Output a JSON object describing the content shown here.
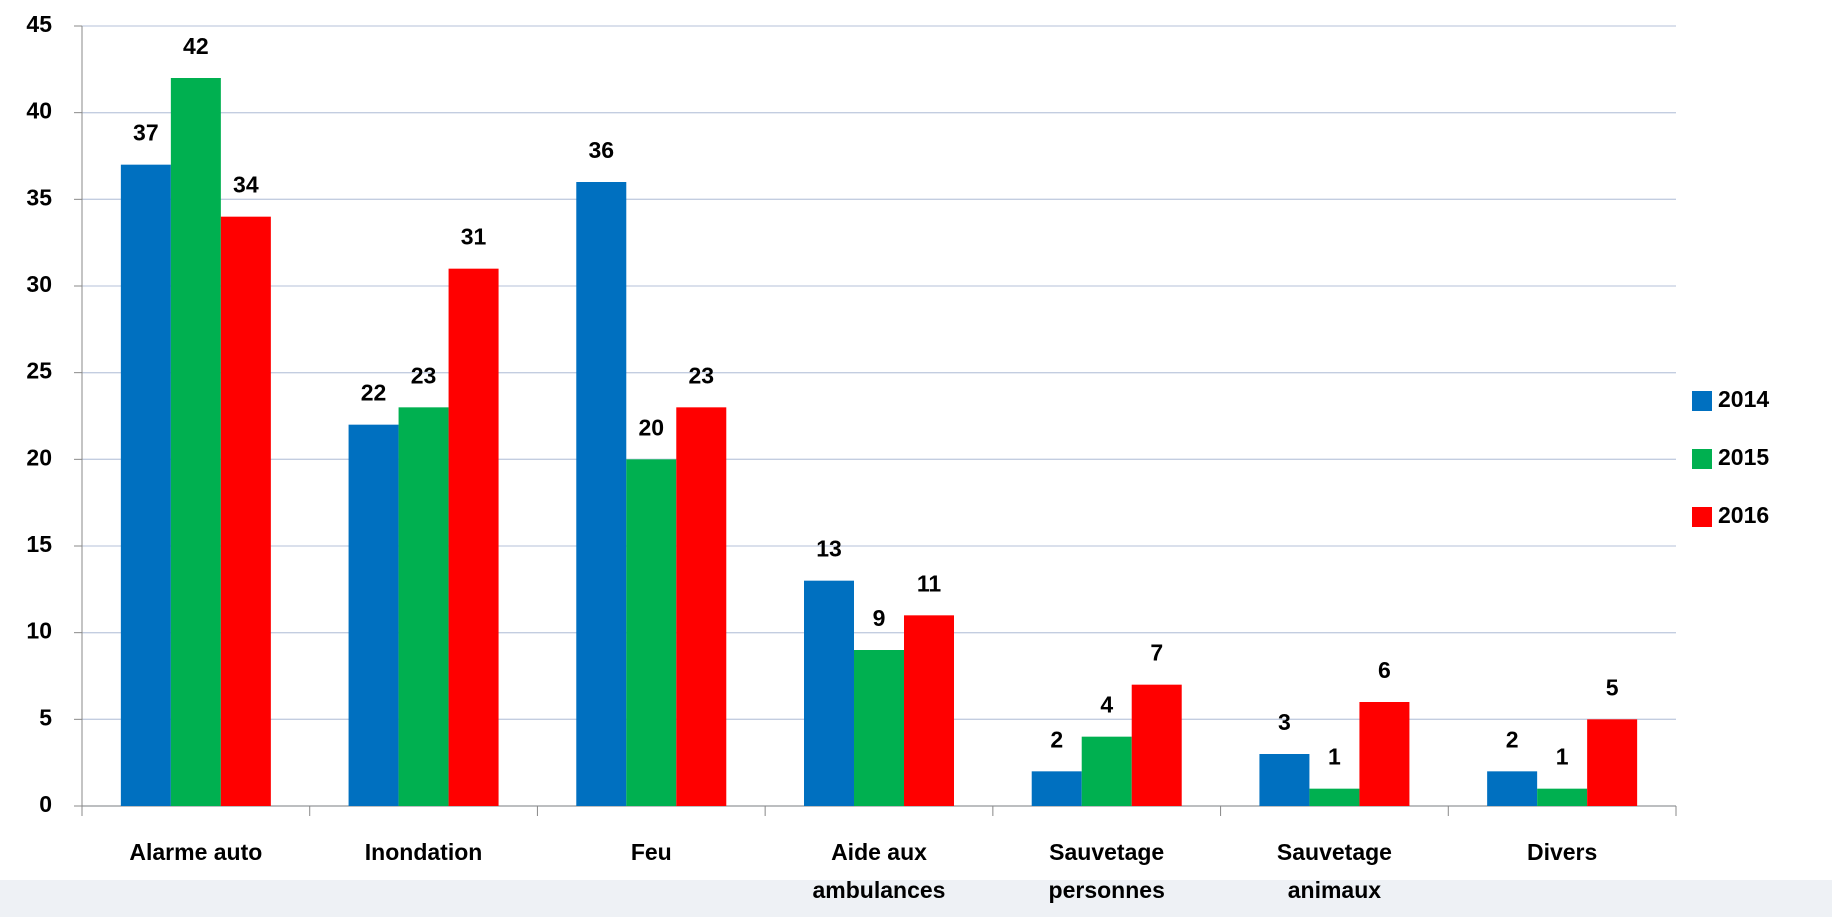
{
  "chart_data": {
    "type": "bar",
    "categories": [
      "Alarme auto",
      "Inondation",
      "Feu",
      "Aide aux ambulances",
      "Sauvetage personnes",
      "Sauvetage animaux",
      "Divers"
    ],
    "series": [
      {
        "name": "2014",
        "color": "#0070c0",
        "values": [
          37,
          22,
          36,
          13,
          2,
          3,
          2
        ]
      },
      {
        "name": "2015",
        "color": "#00b050",
        "values": [
          42,
          23,
          20,
          9,
          4,
          1,
          1
        ]
      },
      {
        "name": "2016",
        "color": "#ff0000",
        "values": [
          34,
          31,
          23,
          11,
          7,
          6,
          5
        ]
      }
    ],
    "ylim": [
      0,
      45
    ],
    "yticks": [
      0,
      5,
      10,
      15,
      20,
      25,
      30,
      35,
      40,
      45
    ],
    "grid": true,
    "legend": "right"
  }
}
